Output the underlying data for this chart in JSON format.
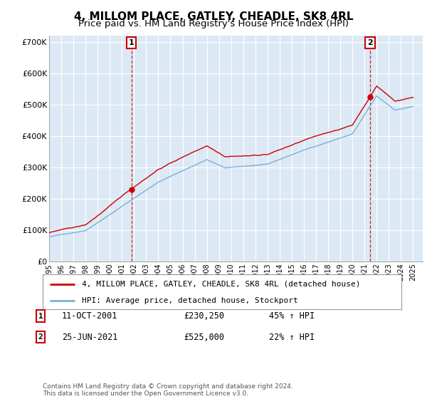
{
  "title": "4, MILLOM PLACE, GATLEY, CHEADLE, SK8 4RL",
  "subtitle": "Price paid vs. HM Land Registry's House Price Index (HPI)",
  "ylim": [
    0,
    720000
  ],
  "yticks": [
    0,
    100000,
    200000,
    300000,
    400000,
    500000,
    600000,
    700000
  ],
  "ytick_labels": [
    "£0",
    "£100K",
    "£200K",
    "£300K",
    "£400K",
    "£500K",
    "£600K",
    "£700K"
  ],
  "background_color": "#ffffff",
  "plot_bg_color": "#dce9f5",
  "grid_color": "#ffffff",
  "sale1_price": 230250,
  "sale2_price": 525000,
  "property_line_color": "#cc0000",
  "hpi_line_color": "#7ab0d4",
  "legend_property_label": "4, MILLOM PLACE, GATLEY, CHEADLE, SK8 4RL (detached house)",
  "legend_hpi_label": "HPI: Average price, detached house, Stockport",
  "table_row1": [
    "1",
    "11-OCT-2001",
    "£230,250",
    "45% ↑ HPI"
  ],
  "table_row2": [
    "2",
    "25-JUN-2021",
    "£525,000",
    "22% ↑ HPI"
  ],
  "footer": "Contains HM Land Registry data © Crown copyright and database right 2024.\nThis data is licensed under the Open Government Licence v3.0.",
  "title_fontsize": 11,
  "subtitle_fontsize": 9.5
}
